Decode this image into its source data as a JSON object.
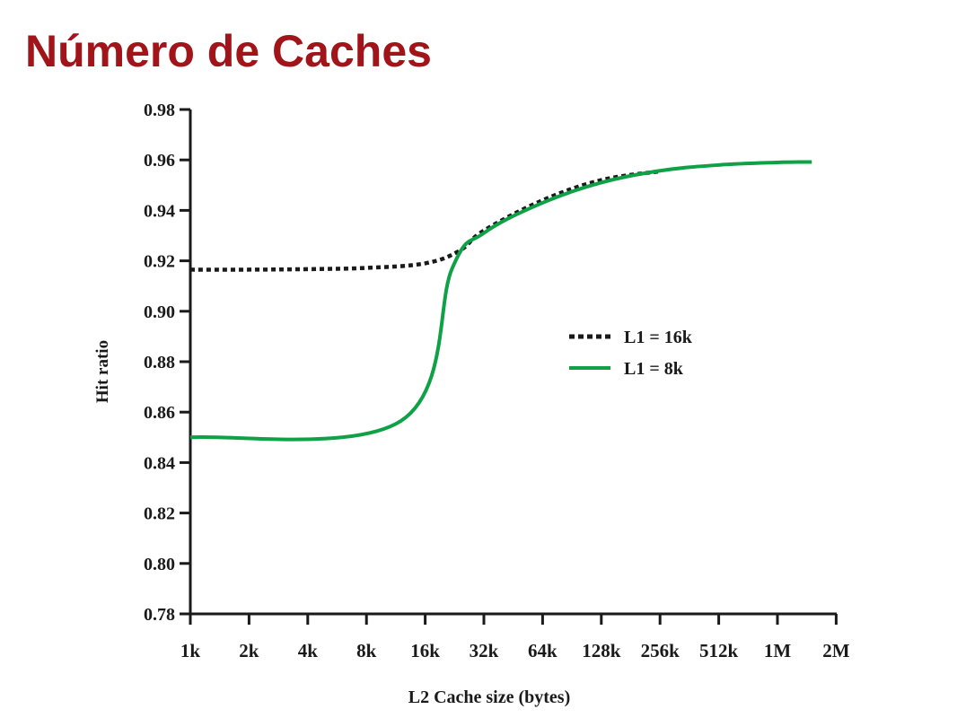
{
  "page": {
    "title": "Número de Caches"
  },
  "chart_data": {
    "type": "line",
    "title": "",
    "xlabel": "L2 Cache size (bytes)",
    "ylabel": "Hit ratio",
    "x_scale": "log2",
    "categories": [
      "1k",
      "2k",
      "4k",
      "8k",
      "16k",
      "32k",
      "64k",
      "128k",
      "256k",
      "512k",
      "1M",
      "2M"
    ],
    "ylim": [
      0.78,
      0.98
    ],
    "y_ticks": [
      "0.78",
      "0.80",
      "0.82",
      "0.84",
      "0.86",
      "0.88",
      "0.90",
      "0.92",
      "0.94",
      "0.96",
      "0.98"
    ],
    "grid": false,
    "legend_position": "center-right",
    "series": [
      {
        "name": "L1 = 16k",
        "style": "dotted",
        "color": "#1a1a1a",
        "points": [
          [
            "1k",
            0.9165
          ],
          [
            "2k",
            0.9165
          ],
          [
            "4k",
            0.9167
          ],
          [
            "8k",
            0.9172
          ],
          [
            "16k",
            0.919
          ],
          [
            "24k",
            0.924
          ],
          [
            "32k",
            0.932
          ],
          [
            "64k",
            0.944
          ],
          [
            "128k",
            0.952
          ],
          [
            "256k",
            0.9555
          ]
        ]
      },
      {
        "name": "L1 = 8k",
        "style": "solid",
        "color": "#0ea146",
        "points": [
          [
            "1k",
            0.85
          ],
          [
            "12k",
            0.8565
          ],
          [
            "22k",
            0.917
          ],
          [
            "32k",
            0.931
          ],
          [
            "64k",
            0.943
          ],
          [
            "128k",
            0.951
          ],
          [
            "256k",
            0.9557
          ],
          [
            "512k",
            0.958
          ],
          [
            "1M",
            0.959
          ],
          [
            "1.5M",
            0.9592
          ]
        ]
      }
    ]
  }
}
